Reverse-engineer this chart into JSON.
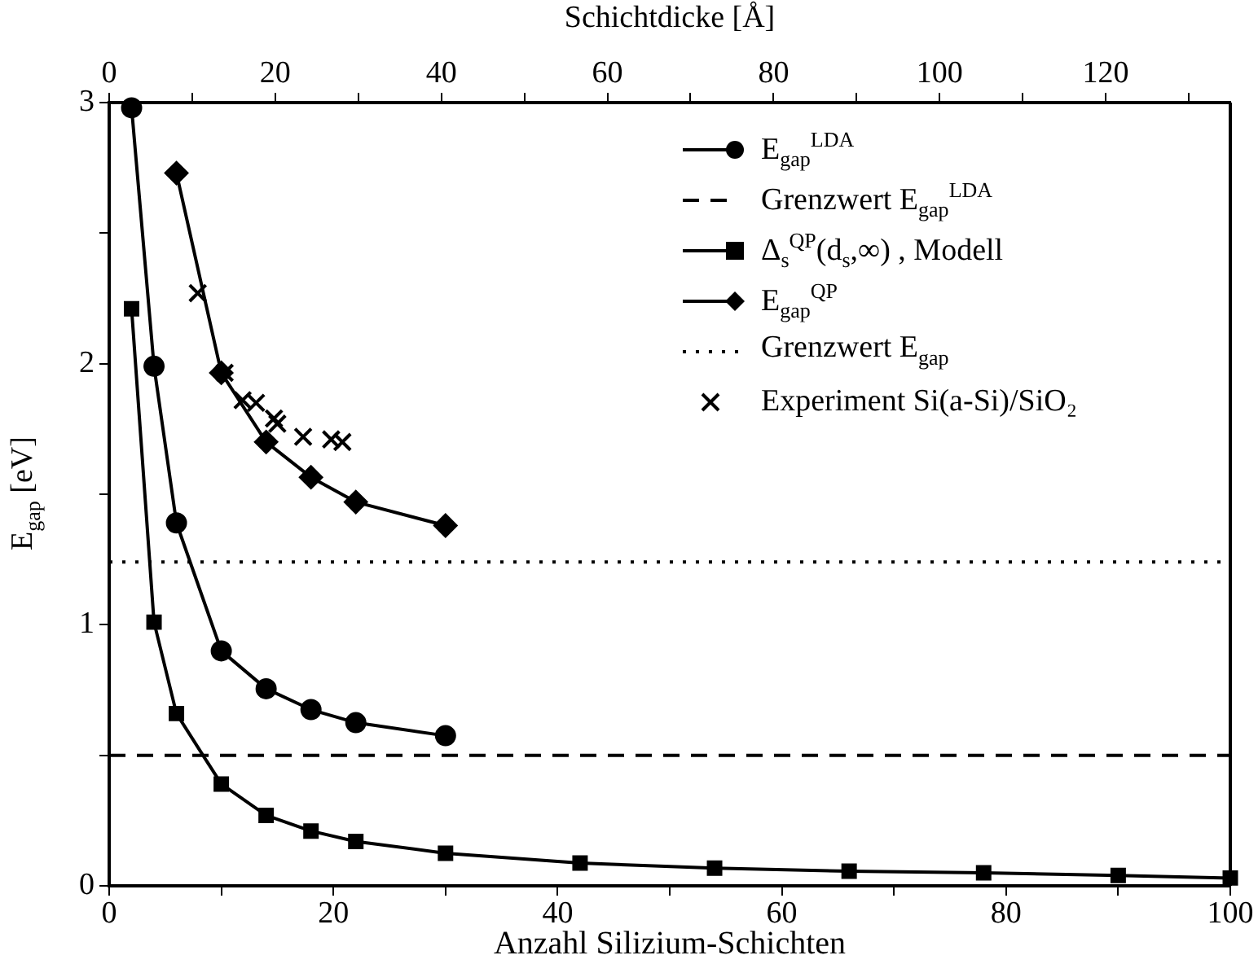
{
  "chart_data": {
    "type": "line",
    "xlabel": "Anzahl Silizium-Schichten",
    "ylabel": "E$_{gap}$ [eV]",
    "x2label": "Schichtdicke [Å]",
    "xlim": [
      0,
      100
    ],
    "xticks": [
      0,
      {
        "value": 10,
        "label": null
      },
      20,
      {
        "value": 30,
        "label": null
      },
      40,
      {
        "value": 50,
        "label": null
      },
      60,
      {
        "value": 70,
        "label": null
      },
      80,
      {
        "value": 90,
        "label": null
      },
      100
    ],
    "ylim": [
      0,
      3
    ],
    "yticks": [
      0,
      {
        "value": 0.5,
        "label": null
      },
      1,
      {
        "value": 1.5,
        "label": null
      },
      2,
      {
        "value": 2.5,
        "label": null
      },
      3
    ],
    "x2lim": [
      0,
      135
    ],
    "x2ticks": [
      0,
      {
        "value": 10,
        "label": null
      },
      20,
      {
        "value": 30,
        "label": null
      },
      40,
      {
        "value": 50,
        "label": null
      },
      60,
      {
        "value": 70,
        "label": null
      },
      80,
      {
        "value": 90,
        "label": null
      },
      100,
      {
        "value": 110,
        "label": null
      },
      120,
      {
        "value": 130,
        "label": null
      }
    ],
    "legend": "top right",
    "grid": false,
    "line_style": "solid",
    "series": [
      {
        "name": "E$_{gap}$$^{LDA}$",
        "color": "#000000",
        "marker": "circle",
        "x": [
          2,
          4,
          6,
          10,
          14,
          18,
          22,
          30
        ],
        "values": [
          2.98,
          1.99,
          1.39,
          0.9,
          0.755,
          0.675,
          0.625,
          0.575
        ]
      },
      {
        "name": "Δ$_{s}$$^{QP}$(d$_{s}$,∞) , Modell",
        "color": "#000000",
        "marker": "square",
        "x": [
          2,
          4,
          6,
          10,
          14,
          18,
          22,
          30,
          42,
          54,
          66,
          78,
          90,
          100
        ],
        "values": [
          2.21,
          1.01,
          0.66,
          0.39,
          0.27,
          0.21,
          0.17,
          0.125,
          0.087,
          0.068,
          0.056,
          0.05,
          0.04,
          0.03
        ]
      },
      {
        "name": "E$_{gap}$$^{QP}$",
        "color": "#000000",
        "marker": "diamond",
        "x": [
          6,
          10,
          14,
          18,
          22,
          30
        ],
        "values": [
          2.73,
          1.965,
          1.7,
          1.565,
          1.47,
          1.38
        ]
      },
      {
        "name": "Experiment Si(a-Si)/SiO₂",
        "type": "scatter",
        "color": "#000000",
        "marker": "cross",
        "x": [
          7.9,
          10.3,
          11.9,
          13.1,
          14.7,
          15,
          17.3,
          19.8,
          20.8
        ],
        "values": [
          2.27,
          1.965,
          1.86,
          1.85,
          1.79,
          1.77,
          1.72,
          1.71,
          1.7
        ]
      }
    ],
    "ref_lines": [
      {
        "axis": "y",
        "value": 0.5,
        "label": "Grenzwert E$_{gap}$$^{LDA}$",
        "color": "#000000",
        "line_style": "dashed"
      },
      {
        "axis": "y",
        "value": 1.24,
        "label": "Grenzwert E$_{gap}$",
        "color": "#000000",
        "line_style": "dotted"
      }
    ]
  }
}
